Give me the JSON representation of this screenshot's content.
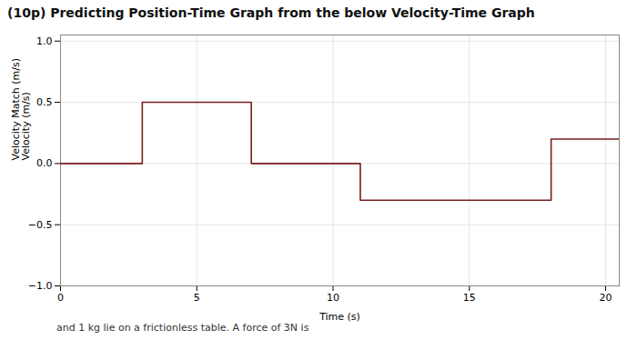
{
  "chart_data": {
    "type": "line",
    "title": "(10p) Predicting Position-Time Graph from the below Velocity-Time Graph",
    "xlabel": "Time (s)",
    "ylabel": "Velocity Match (m/s)\nVelocity (m/s)",
    "annotations": [
      "and 1 kg lie on a frictionless table. A force of 3N is"
    ],
    "x": [
      0,
      3,
      3,
      7,
      7,
      11,
      11,
      18,
      18,
      20.5
    ],
    "values": [
      0.0,
      0.0,
      0.5,
      0.5,
      0.0,
      0.0,
      -0.3,
      -0.3,
      0.2,
      0.2
    ],
    "color": "#7a1e1e",
    "xlim": [
      0,
      20.5
    ],
    "ylim": [
      -1.0,
      1.05
    ],
    "xticks": [
      0,
      5,
      10,
      15,
      20
    ],
    "yticks": [
      {
        "value": -1.0,
        "label": "−1.0"
      },
      {
        "value": -0.5,
        "label": "−0.5"
      },
      {
        "value": 0.0,
        "label": "0.0"
      },
      0.5,
      {
        "value": 1.0,
        "label": "1.0"
      }
    ],
    "grid": true
  }
}
